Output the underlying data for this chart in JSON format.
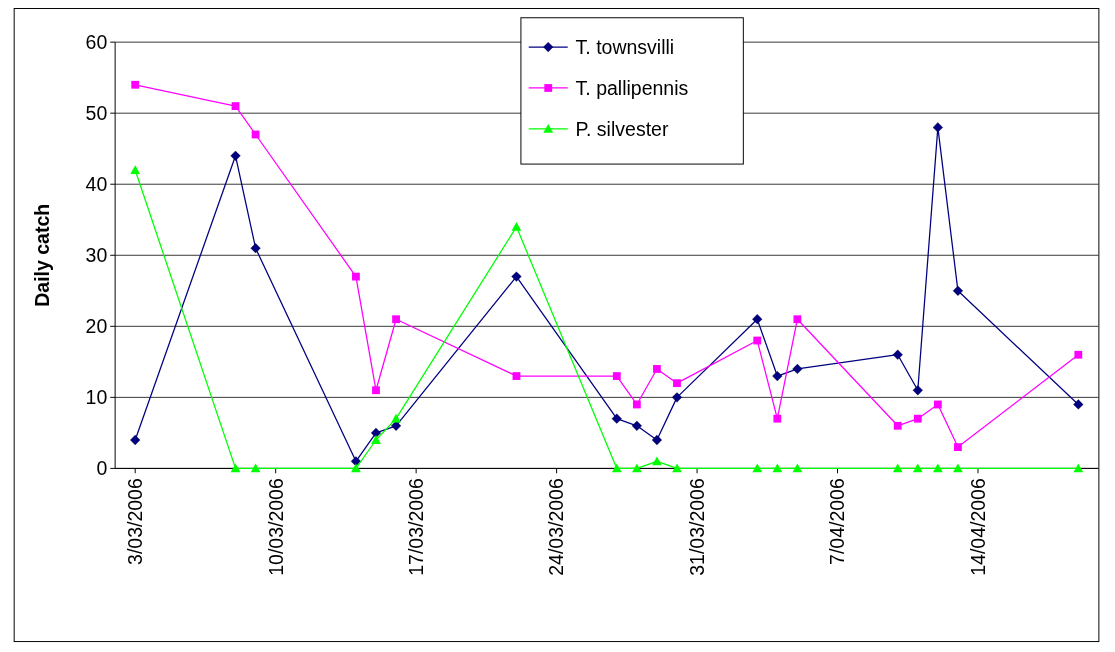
{
  "chart_data": {
    "type": "line",
    "ylabel": "Daily catch",
    "x": [
      "2006-03-03",
      "2006-03-08",
      "2006-03-09",
      "2006-03-14",
      "2006-03-15",
      "2006-03-16",
      "2006-03-22",
      "2006-03-27",
      "2006-03-28",
      "2006-03-29",
      "2006-03-30",
      "2006-04-03",
      "2006-04-04",
      "2006-04-05",
      "2006-04-10",
      "2006-04-11",
      "2006-04-12",
      "2006-04-13",
      "2006-04-19"
    ],
    "series": [
      {
        "name": "T. townsvilli",
        "color": "#000080",
        "marker": "diamond",
        "values": [
          4,
          44,
          31,
          1,
          5,
          6,
          27,
          7,
          6,
          4,
          10,
          21,
          13,
          14,
          16,
          11,
          48,
          25,
          9
        ]
      },
      {
        "name": "T. pallipennis",
        "color": "#ff00ff",
        "marker": "square",
        "values": [
          54,
          51,
          47,
          27,
          11,
          21,
          13,
          13,
          9,
          14,
          12,
          18,
          7,
          21,
          6,
          7,
          9,
          3,
          16
        ]
      },
      {
        "name": "P. silvester",
        "color": "#00ff00",
        "marker": "triangle",
        "values": [
          42,
          0,
          0,
          0,
          4,
          7,
          34,
          0,
          0,
          1,
          0,
          0,
          0,
          0,
          0,
          0,
          0,
          0,
          0
        ]
      }
    ],
    "xlim": [
      "2006-03-02",
      "2006-04-20"
    ],
    "xticks": [
      {
        "value": "2006-03-03",
        "label": "3/03/2006"
      },
      {
        "value": "2006-03-10",
        "label": "10/03/2006"
      },
      {
        "value": "2006-03-17",
        "label": "17/03/2006"
      },
      {
        "value": "2006-03-24",
        "label": "24/03/2006"
      },
      {
        "value": "2006-03-31",
        "label": "31/03/2006"
      },
      {
        "value": "2006-04-07",
        "label": "7/04/2006"
      },
      {
        "value": "2006-04-14",
        "label": "14/04/2006"
      }
    ],
    "ylim": [
      0,
      60
    ],
    "yticks": [
      0,
      10,
      20,
      30,
      40,
      50,
      60
    ],
    "grid": "y",
    "legend": "top"
  }
}
